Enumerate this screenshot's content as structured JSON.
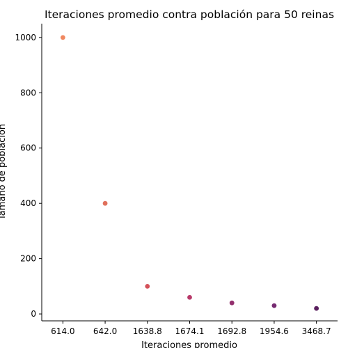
{
  "chart_data": {
    "type": "scatter",
    "title": "Iteraciones promedio contra población para 50 reinas",
    "xlabel": "Iteraciones promedio",
    "ylabel": "Tamaño de población",
    "categories": [
      "614.0",
      "642.0",
      "1638.8",
      "1674.1",
      "1692.8",
      "1954.6",
      "3468.7"
    ],
    "values": [
      1000,
      400,
      100,
      60,
      40,
      30,
      20
    ],
    "colors": [
      "#f0875f",
      "#e0705c",
      "#d4525a",
      "#b83a6a",
      "#93306e",
      "#762a71",
      "#5a1f5e"
    ],
    "ylim": [
      -25,
      1050
    ],
    "yticks": [
      0,
      200,
      400,
      600,
      800,
      1000
    ],
    "x_axis_type": "categorical",
    "grid": false,
    "legend": "none"
  }
}
